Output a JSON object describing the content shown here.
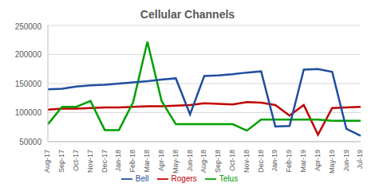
{
  "chart_data": {
    "type": "line",
    "title": "Cellular Channels",
    "categories": [
      "Aug-17",
      "Sep-17",
      "Oct-17",
      "Nov-17",
      "Dec-17",
      "Jan-18",
      "Feb-18",
      "Mar-18",
      "Apr-18",
      "May-18",
      "Jun-18",
      "Aug-18",
      "Sep-18",
      "Oct-18",
      "Nov-18",
      "Dec-18",
      "Jan-19",
      "Feb-19",
      "Mar-19",
      "Apr-19",
      "May-19",
      "Jun-19",
      "Jul-19"
    ],
    "series": [
      {
        "name": "Rogers",
        "color": "#c00000",
        "values": [
          105000,
          107000,
          107000,
          108000,
          109000,
          109000,
          110000,
          111000,
          111000,
          112000,
          113000,
          116000,
          115000,
          114000,
          118000,
          117000,
          113000,
          95000,
          113000,
          62000,
          108000,
          109000,
          110000
        ]
      },
      {
        "name": "Telus",
        "color": "#00a000",
        "values": [
          80000,
          110000,
          110000,
          120000,
          70000,
          70000,
          118000,
          222000,
          120000,
          80000,
          80000,
          80000,
          80000,
          80000,
          69000,
          88000,
          88000,
          88000,
          88000,
          88000,
          86000,
          86000,
          86000
        ]
      },
      {
        "name": "Bell",
        "color": "#1f4e9e",
        "values": [
          140000,
          141000,
          145000,
          147000,
          148000,
          150000,
          152000,
          154000,
          157000,
          159000,
          97000,
          163000,
          164000,
          166000,
          169000,
          171000,
          76000,
          77000,
          174000,
          175000,
          170000,
          72000,
          60000
        ]
      }
    ],
    "ylim": [
      50000,
      250000
    ],
    "yticks": [
      50000,
      100000,
      150000,
      200000,
      250000
    ],
    "grid": true,
    "legend": "bottom"
  }
}
